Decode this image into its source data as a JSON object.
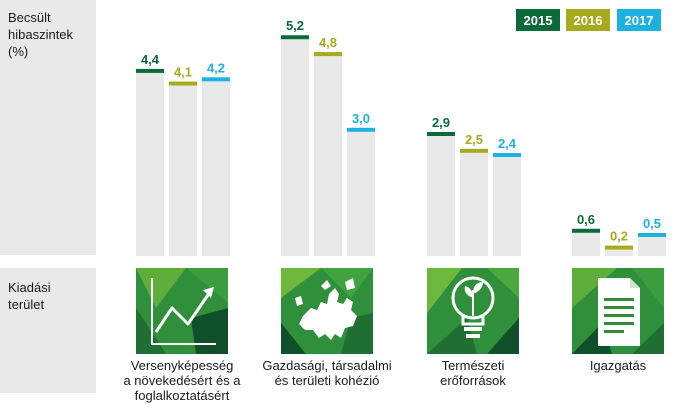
{
  "side": {
    "top_label_lines": [
      "Becsült",
      "hibaszintek",
      "(%)"
    ],
    "bottom_label_lines": [
      "Kiadási",
      "terület"
    ]
  },
  "colors": {
    "2015": "#0b6a3a",
    "2016": "#a6ab1e",
    "2017": "#1cb2e0",
    "bar": "#e9e9e9"
  },
  "chart_data": {
    "type": "bar",
    "title": "",
    "ylabel": "Becsült hibaszintek (%)",
    "xlabel": "Kiadási terület",
    "ylim": [
      0,
      5.8
    ],
    "legend_position": "top-right",
    "categories": [
      "Versenyképesség a növekedésért és a foglalkoztatásért",
      "Gazdasági, társadalmi és területi kohézió",
      "Természeti erőforrások",
      "Igazgatás"
    ],
    "series": [
      {
        "name": "2015",
        "values": [
          4.4,
          5.2,
          2.9,
          0.6
        ],
        "labels": [
          "4,4",
          "5,2",
          "2,9",
          "0,6"
        ]
      },
      {
        "name": "2016",
        "values": [
          4.1,
          4.8,
          2.5,
          0.2
        ],
        "labels": [
          "4,1",
          "4,8",
          "2,5",
          "0,2"
        ]
      },
      {
        "name": "2017",
        "values": [
          4.2,
          3.0,
          2.4,
          0.5
        ],
        "labels": [
          "4,2",
          "3,0",
          "2,4",
          "0,5"
        ]
      }
    ]
  },
  "category_labels": [
    [
      "Versenyképesség",
      "a növekedésért és a",
      "foglalkoztatásért"
    ],
    [
      "Gazdasági, társadalmi",
      "és területi kohézió"
    ],
    [
      "Természeti",
      "erőforrások"
    ],
    [
      "Igazgatás"
    ]
  ],
  "category_icons": [
    "growth-chart-icon",
    "europe-map-icon",
    "lightbulb-plant-icon",
    "document-icon"
  ],
  "legend": [
    "2015",
    "2016",
    "2017"
  ]
}
